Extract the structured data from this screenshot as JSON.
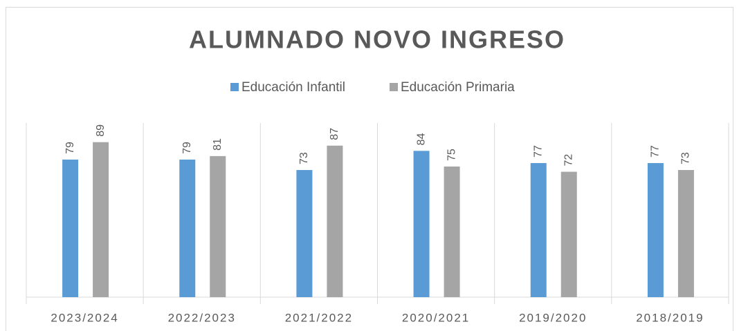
{
  "chart_data": {
    "type": "bar",
    "title": "ALUMNADO NOVO INGRESO",
    "categories": [
      "2023/2024",
      "2022/2023",
      "2021/2022",
      "2020/2021",
      "2019/2020",
      "2018/2019"
    ],
    "series": [
      {
        "name": "Educación Infantil",
        "color": "#5b9bd5",
        "values": [
          79,
          79,
          73,
          84,
          77,
          77
        ]
      },
      {
        "name": "Educación Primaria",
        "color": "#a5a5a5",
        "values": [
          89,
          81,
          87,
          75,
          72,
          73
        ]
      }
    ],
    "ylim": [
      0,
      100
    ],
    "legend": "top"
  }
}
